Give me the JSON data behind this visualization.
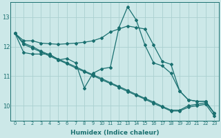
{
  "xlabel": "Humidex (Indice chaleur)",
  "ylabel": "",
  "background_color": "#cce8e8",
  "grid_color": "#aad0d0",
  "line_color": "#1a7070",
  "xlim": [
    -0.5,
    23.5
  ],
  "ylim": [
    9.5,
    13.5
  ],
  "yticks": [
    10,
    11,
    12,
    13
  ],
  "xticks": [
    0,
    1,
    2,
    3,
    4,
    5,
    6,
    7,
    8,
    9,
    10,
    11,
    12,
    13,
    14,
    15,
    16,
    17,
    18,
    19,
    20,
    21,
    22,
    23
  ],
  "series": {
    "line1_x": [
      0,
      1,
      2,
      3,
      4,
      5,
      6,
      7,
      8,
      9,
      10,
      11,
      12,
      13,
      14,
      15,
      16,
      17,
      18,
      19,
      20,
      21,
      22,
      23
    ],
    "line1_y": [
      12.45,
      12.2,
      12.2,
      12.12,
      12.1,
      12.08,
      12.1,
      12.12,
      12.15,
      12.2,
      12.3,
      12.5,
      12.6,
      12.7,
      12.65,
      12.6,
      12.05,
      11.5,
      11.4,
      10.5,
      10.2,
      10.15,
      10.15,
      9.75
    ],
    "line2_x": [
      0,
      1,
      2,
      3,
      4,
      5,
      6,
      7,
      8,
      9,
      10,
      11,
      12,
      13,
      14,
      15,
      16,
      17,
      18,
      19,
      20,
      21,
      22,
      23
    ],
    "line2_y": [
      12.45,
      11.8,
      11.75,
      11.75,
      11.75,
      11.55,
      11.6,
      11.45,
      10.6,
      11.1,
      11.25,
      11.3,
      12.65,
      13.35,
      12.9,
      12.05,
      11.45,
      11.35,
      11.1,
      10.5,
      10.2,
      10.15,
      10.15,
      9.75
    ],
    "line3_x": [
      0,
      1,
      2,
      3,
      4,
      5,
      6,
      7,
      8,
      9,
      10,
      11,
      12,
      13,
      14,
      15,
      16,
      17,
      18,
      19,
      20,
      21,
      22,
      23
    ],
    "line3_y": [
      12.45,
      12.12,
      12.0,
      11.85,
      11.72,
      11.58,
      11.45,
      11.32,
      11.18,
      11.05,
      10.92,
      10.78,
      10.65,
      10.52,
      10.38,
      10.25,
      10.12,
      9.98,
      9.85,
      9.85,
      10.0,
      10.05,
      10.1,
      9.75
    ],
    "line4_x": [
      0,
      1,
      2,
      3,
      4,
      5,
      6,
      7,
      8,
      9,
      10,
      11,
      12,
      13,
      14,
      15,
      16,
      17,
      18,
      19,
      20,
      21,
      22,
      23
    ],
    "line4_y": [
      12.45,
      12.08,
      11.95,
      11.82,
      11.68,
      11.55,
      11.42,
      11.28,
      11.15,
      11.02,
      10.88,
      10.75,
      10.62,
      10.48,
      10.35,
      10.22,
      10.08,
      9.95,
      9.82,
      9.82,
      9.95,
      10.0,
      10.05,
      9.65
    ]
  },
  "marker": "D",
  "markersize": 2.0,
  "linewidth": 0.9
}
